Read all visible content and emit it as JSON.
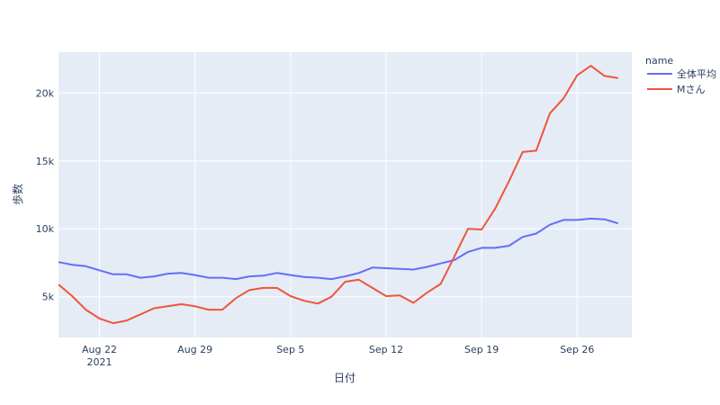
{
  "chart_data": {
    "type": "line",
    "xlabel": "日付",
    "ylabel": "歩数",
    "x_start": "2021-08-19",
    "xlim": [
      "2021-08-19",
      "2021-09-30"
    ],
    "ylim": [
      2000,
      23000
    ],
    "x_ticks": [
      {
        "date": "2021-08-22",
        "label": "Aug 22",
        "sub": "2021"
      },
      {
        "date": "2021-08-29",
        "label": "Aug 29",
        "sub": ""
      },
      {
        "date": "2021-09-05",
        "label": "Sep 5",
        "sub": ""
      },
      {
        "date": "2021-09-12",
        "label": "Sep 12",
        "sub": ""
      },
      {
        "date": "2021-09-19",
        "label": "Sep 19",
        "sub": ""
      },
      {
        "date": "2021-09-26",
        "label": "Sep 26",
        "sub": ""
      }
    ],
    "y_ticks": [
      {
        "value": 5000,
        "label": "5k"
      },
      {
        "value": 10000,
        "label": "10k"
      },
      {
        "value": 15000,
        "label": "15k"
      },
      {
        "value": 20000,
        "label": "20k"
      }
    ],
    "grid": true,
    "legend": {
      "title": "name",
      "position": "right"
    },
    "series": [
      {
        "name": "全体平均",
        "color": "#636efa",
        "values": [
          7550,
          7350,
          7250,
          6950,
          6650,
          6650,
          6400,
          6500,
          6700,
          6750,
          6600,
          6400,
          6400,
          6300,
          6500,
          6550,
          6750,
          6600,
          6450,
          6400,
          6300,
          6500,
          6750,
          7150,
          7100,
          7050,
          7000,
          7200,
          7450,
          7700,
          8300,
          8600,
          8600,
          8750,
          9400,
          9650,
          10300,
          10650,
          10650,
          10750,
          10700,
          10400
        ]
      },
      {
        "name": "Mさん",
        "color": "#ef553b",
        "values": [
          5900,
          5050,
          4050,
          3400,
          3050,
          3250,
          3700,
          4150,
          4300,
          4450,
          4300,
          4050,
          4050,
          4900,
          5500,
          5650,
          5650,
          5050,
          4700,
          4500,
          5000,
          6100,
          6250,
          5650,
          5050,
          5100,
          4550,
          5300,
          5950,
          7950,
          10000,
          9950,
          11500,
          13500,
          15650,
          15750,
          18500,
          19600,
          21300,
          22000,
          21250,
          21100
        ]
      }
    ]
  }
}
